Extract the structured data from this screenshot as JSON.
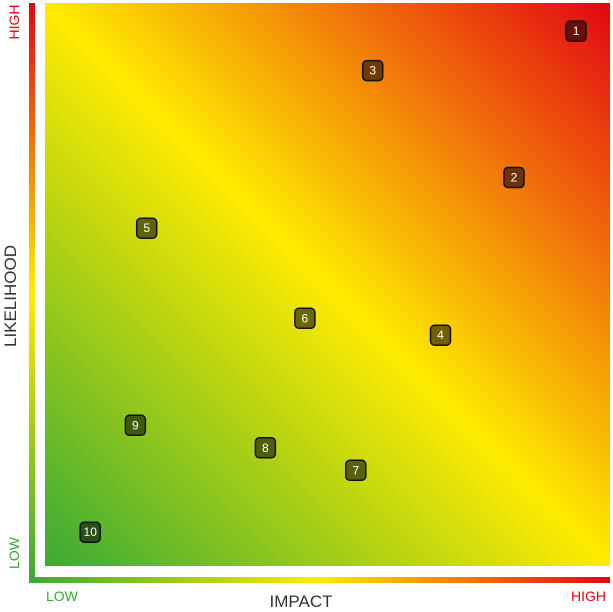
{
  "chart_data": {
    "type": "scatter",
    "title": "",
    "xlabel": "IMPACT",
    "ylabel": "LIKELIHOOD",
    "x_ticks": {
      "low": "LOW",
      "high": "HIGH"
    },
    "y_ticks": {
      "low": "LOW",
      "high": "HIGH"
    },
    "xlim": [
      0,
      10
    ],
    "ylim": [
      0,
      10
    ],
    "grid": false,
    "legend": "none",
    "colors": {
      "low": "#3aaa35",
      "mid": "#ffeb00",
      "high": "#e30613",
      "low_label": "#3aaa35",
      "high_label": "#e30613"
    },
    "points": [
      {
        "label": "1",
        "x": 9.4,
        "y": 9.5
      },
      {
        "label": "2",
        "x": 8.3,
        "y": 6.9
      },
      {
        "label": "3",
        "x": 5.8,
        "y": 8.8
      },
      {
        "label": "4",
        "x": 7.0,
        "y": 4.1
      },
      {
        "label": "5",
        "x": 1.8,
        "y": 6.0
      },
      {
        "label": "6",
        "x": 4.6,
        "y": 4.4
      },
      {
        "label": "7",
        "x": 5.5,
        "y": 1.7
      },
      {
        "label": "8",
        "x": 3.9,
        "y": 2.1
      },
      {
        "label": "9",
        "x": 1.6,
        "y": 2.5
      },
      {
        "label": "10",
        "x": 0.8,
        "y": 0.6
      }
    ]
  }
}
